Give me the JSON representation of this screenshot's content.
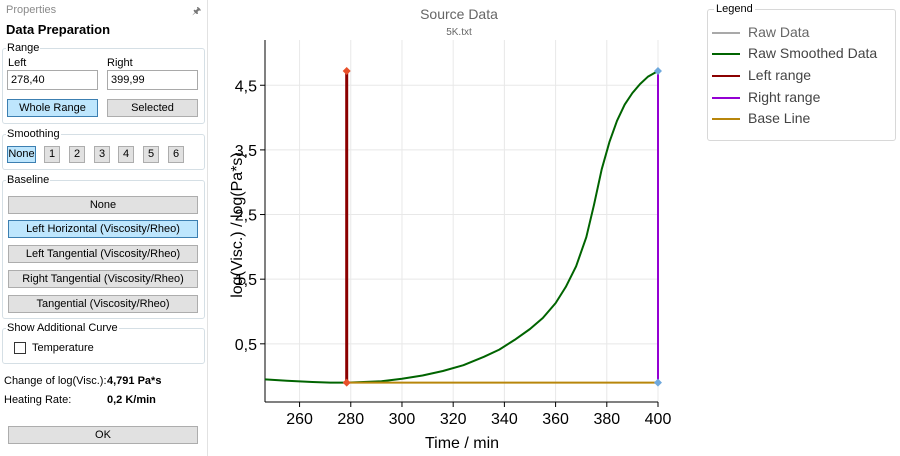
{
  "panel": {
    "caption": "Properties",
    "pin_icon": "pin-icon",
    "title": "Data Preparation"
  },
  "range": {
    "legend": "Range",
    "left_label": "Left",
    "right_label": "Right",
    "left_value": "278,40",
    "right_value": "399,99",
    "whole_range": "Whole Range",
    "selected": "Selected"
  },
  "smoothing": {
    "legend": "Smoothing",
    "options": [
      "None",
      "1",
      "2",
      "3",
      "4",
      "5",
      "6"
    ],
    "selected": "None"
  },
  "baseline": {
    "legend": "Baseline",
    "options": [
      "None",
      "Left Horizontal (Viscosity/Rheo)",
      "Left Tangential (Viscosity/Rheo)",
      "Right Tangential (Viscosity/Rheo)",
      "Tangential (Viscosity/Rheo)"
    ],
    "selected": "Left Horizontal (Viscosity/Rheo)"
  },
  "additional": {
    "legend": "Show Additional Curve",
    "temperature_label": "Temperature",
    "temperature_checked": false
  },
  "results": {
    "change_label": "Change of log(Visc.):",
    "change_value": "4,791 Pa*s",
    "rate_label": "Heating Rate:",
    "rate_value": "0,2 K/min"
  },
  "ok_label": "OK",
  "legend": {
    "caption": "Legend",
    "items": [
      {
        "label": "Raw Data",
        "color": "#a9a9a9"
      },
      {
        "label": "Raw Smoothed Data",
        "color": "#006400"
      },
      {
        "label": "Left range",
        "color": "#8b0000"
      },
      {
        "label": "Right range",
        "color": "#9400d3"
      },
      {
        "label": "Base Line",
        "color": "#b8860b"
      }
    ]
  },
  "chart_data": {
    "type": "line",
    "title": "Source Data",
    "subtitle": "5K.txt",
    "xlabel": "Time / min",
    "ylabel": "log(Visc.) / log(Pa*s)",
    "xlim": [
      246.5,
      400
    ],
    "ylim": [
      -0.4,
      5.2
    ],
    "x_ticks": [
      260,
      280,
      300,
      320,
      340,
      360,
      380,
      400
    ],
    "y_ticks": [
      0.5,
      1.5,
      2.5,
      3.5,
      4.5
    ],
    "y_tick_labels": [
      "0,5",
      "1,5",
      "2,5",
      "3,5",
      "4,5"
    ],
    "grid": true,
    "series": [
      {
        "name": "Raw Smoothed Data",
        "color": "#006400",
        "x": [
          246.5,
          255,
          265,
          272,
          278.4,
          285,
          292,
          300,
          308,
          316,
          324,
          332,
          338,
          344,
          350,
          355,
          360,
          364,
          368,
          372,
          375,
          378,
          381,
          384,
          387,
          390,
          393,
          396,
          400
        ],
        "y": [
          -0.05,
          -0.07,
          -0.09,
          -0.1,
          -0.1,
          -0.09,
          -0.08,
          -0.04,
          0.01,
          0.08,
          0.17,
          0.3,
          0.41,
          0.56,
          0.73,
          0.9,
          1.13,
          1.38,
          1.7,
          2.15,
          2.65,
          3.2,
          3.62,
          3.95,
          4.2,
          4.38,
          4.52,
          4.63,
          4.72
        ]
      },
      {
        "name": "Left range",
        "color": "#8b0000",
        "x": [
          278.4,
          278.4
        ],
        "y": [
          -0.1,
          4.72
        ]
      },
      {
        "name": "Right range",
        "color": "#9400d3",
        "x": [
          399.99,
          399.99
        ],
        "y": [
          -0.1,
          4.72
        ]
      },
      {
        "name": "Base Line",
        "color": "#b8860b",
        "x": [
          278.4,
          400
        ],
        "y": [
          -0.1,
          -0.1
        ]
      }
    ],
    "markers": [
      {
        "name": "left-range-top",
        "x": 278.4,
        "y": 4.72,
        "color": "#e8502a"
      },
      {
        "name": "left-range-bottom",
        "x": 278.4,
        "y": -0.1,
        "color": "#e8502a"
      },
      {
        "name": "right-range-top",
        "x": 399.99,
        "y": 4.72,
        "color": "#6fa8dc"
      },
      {
        "name": "right-range-bottom",
        "x": 399.99,
        "y": -0.1,
        "color": "#6fa8dc"
      }
    ]
  }
}
